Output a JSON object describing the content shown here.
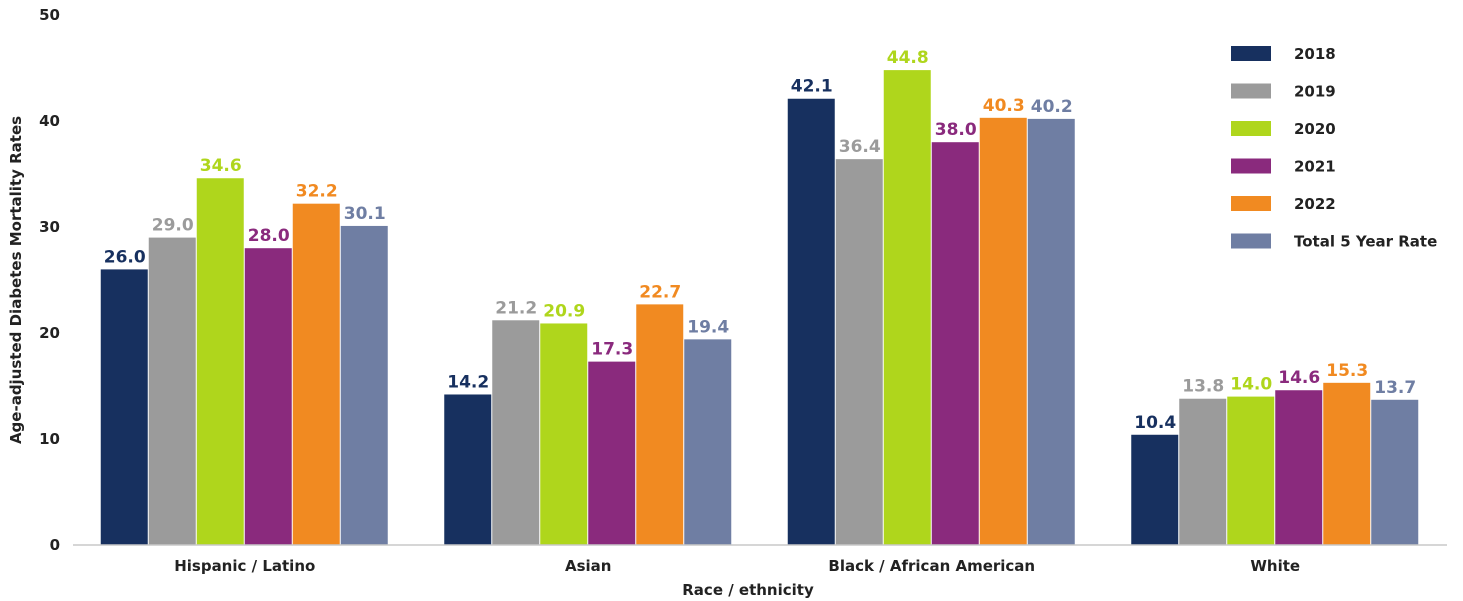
{
  "chart_data": {
    "type": "bar",
    "categories": [
      "Hispanic / Latino",
      "Asian",
      "Black / African American",
      "White"
    ],
    "series": [
      {
        "name": "2018",
        "color": "#17305f",
        "values": [
          26.0,
          14.2,
          42.1,
          10.4
        ]
      },
      {
        "name": "2019",
        "color": "#9b9b9b",
        "values": [
          29.0,
          21.2,
          36.4,
          13.8
        ]
      },
      {
        "name": "2020",
        "color": "#afd61c",
        "values": [
          34.6,
          20.9,
          44.8,
          14.0
        ]
      },
      {
        "name": "2021",
        "color": "#8a2a7d",
        "values": [
          28.0,
          17.3,
          38.0,
          14.6
        ]
      },
      {
        "name": "2022",
        "color": "#f18a21",
        "values": [
          32.2,
          22.7,
          40.3,
          15.3
        ]
      },
      {
        "name": "Total 5 Year Rate",
        "color": "#6f7ea3",
        "values": [
          30.1,
          19.4,
          40.2,
          13.7
        ]
      }
    ],
    "data_labels": [
      [
        "26.0",
        "14.2",
        "42.1",
        "10.4"
      ],
      [
        "29.0",
        "21.2",
        "36.4",
        "13.8"
      ],
      [
        "34.6",
        "20.9",
        "44.8",
        "14.0"
      ],
      [
        "28.0",
        "17.3",
        "38.0",
        "14.6"
      ],
      [
        "32.2",
        "22.7",
        "40.3",
        "15.3"
      ],
      [
        "30.1",
        "19.4",
        "40.2",
        "13.7"
      ]
    ],
    "xlabel": "Race / ethnicity",
    "ylabel": "Age-adjusted Diabetes Mortality Rates",
    "ylim": [
      0,
      50
    ],
    "yticks": [
      0,
      10,
      20,
      30,
      40,
      50
    ],
    "grid": false,
    "legend_position": "top-right"
  }
}
